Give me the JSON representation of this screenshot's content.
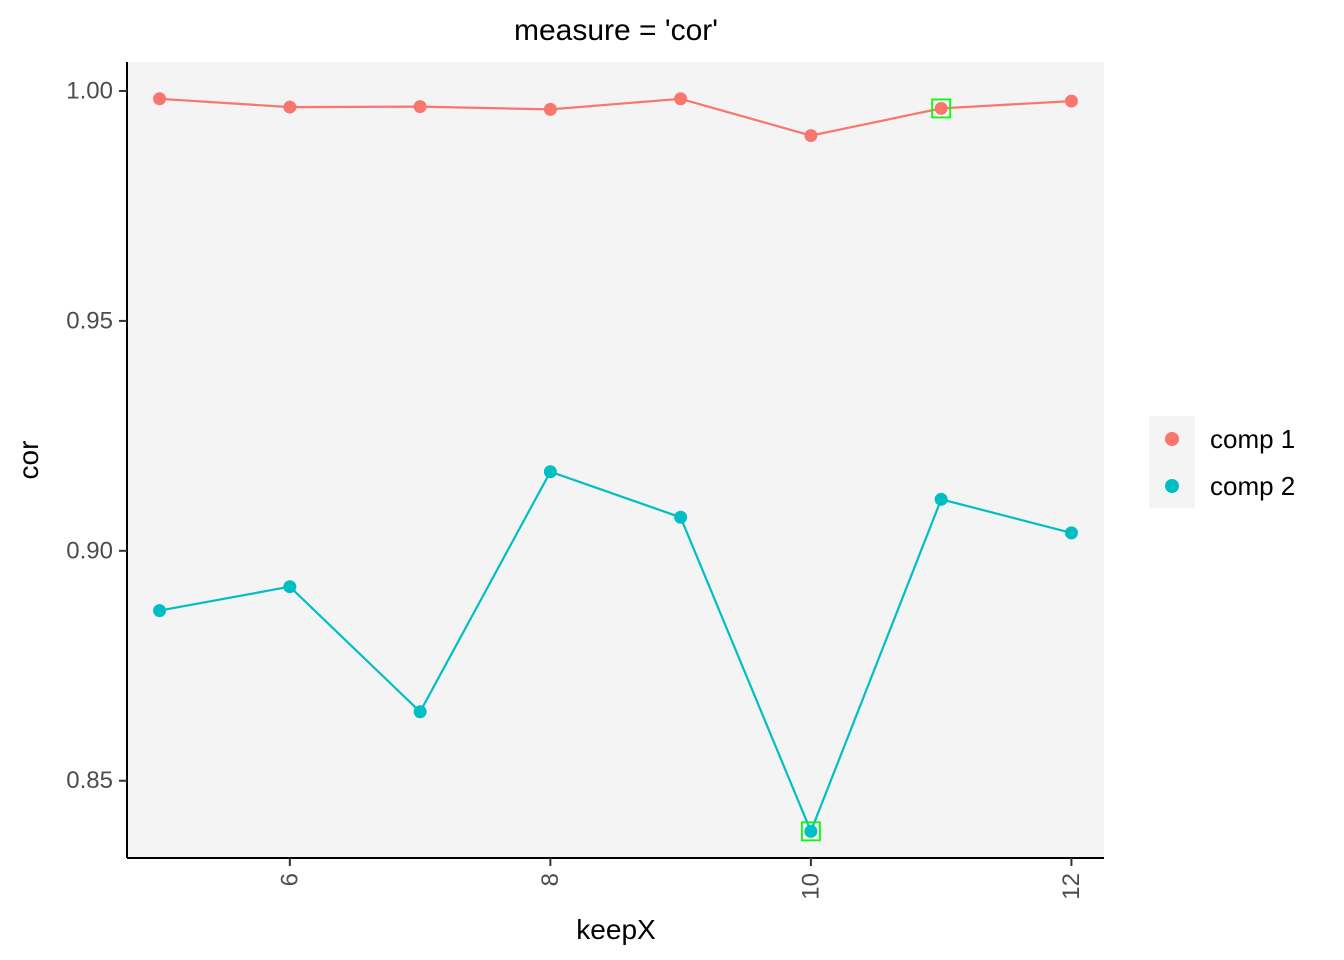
{
  "chart_data": {
    "type": "line",
    "title": "measure = 'cor'",
    "xlabel": "keepX",
    "ylabel": "cor",
    "x": [
      5,
      6,
      7,
      8,
      9,
      10,
      11,
      12
    ],
    "xlim": [
      4.75,
      12.25
    ],
    "ylim": [
      0.8332,
      1.0063
    ],
    "x_ticks": [
      6,
      8,
      10,
      12
    ],
    "x_tick_labels": [
      "6",
      "8",
      "10",
      "12"
    ],
    "y_ticks": [
      0.85,
      0.9,
      0.95,
      1.0
    ],
    "y_tick_labels": [
      "0.85",
      "0.90",
      "0.95",
      "1.00"
    ],
    "grid": false,
    "legend_position": "right",
    "series": [
      {
        "name": "comp 1",
        "color": "#F8766D",
        "values": [
          0.9983,
          0.9965,
          0.9966,
          0.996,
          0.9983,
          0.9903,
          0.9962,
          0.9978
        ],
        "highlight_x": 11
      },
      {
        "name": "comp 2",
        "color": "#00BFC4",
        "values": [
          0.887,
          0.8922,
          0.865,
          0.9172,
          0.9073,
          0.839,
          0.9112,
          0.9039
        ],
        "highlight_x": 10
      }
    ],
    "highlight_color": "#00FF00",
    "panel_background": "#F4F4F4"
  }
}
